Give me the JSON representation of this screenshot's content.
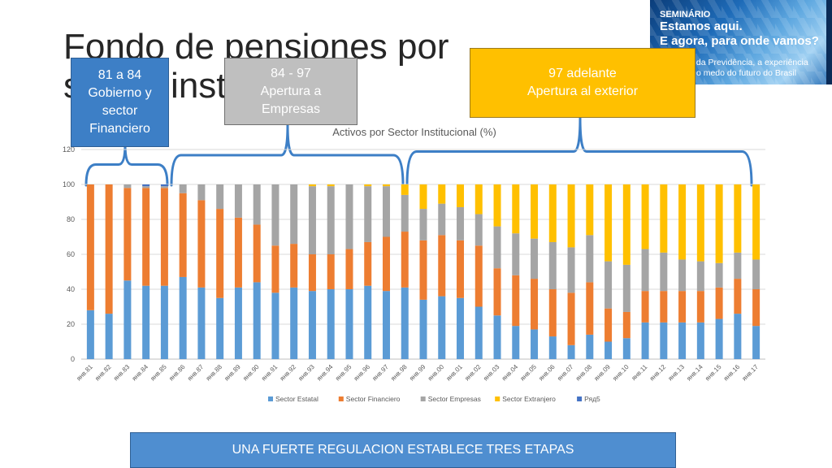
{
  "slide": {
    "title_line1": "Fondo de pensiones por",
    "title_line2": "sector institucional"
  },
  "banner": {
    "line1": "SEMINÁRIO",
    "line2": "Estamos aqui.",
    "line3": "E agora, para onde vamos?",
    "line4": "O dilema da Previdência, a experiência chilena e o medo do futuro do Brasil"
  },
  "callouts": [
    {
      "lines": [
        "81 a 84",
        "Gobierno y",
        "sector",
        "Financiero"
      ],
      "color": "#3d7fc6"
    },
    {
      "lines": [
        "84 - 97",
        "Apertura a",
        "Empresas"
      ],
      "color": "#bfbfbf"
    },
    {
      "lines": [
        "97 adelante",
        "Apertura al exterior"
      ],
      "color": "#ffc000"
    }
  ],
  "footer": {
    "text": "UNA FUERTE REGULACION ESTABLECE TRES ETAPAS"
  },
  "chart_data": {
    "type": "bar",
    "stacked": true,
    "title": "Activos por Sector Institucional (%)",
    "ylim": [
      0,
      120
    ],
    "yticks": [
      0,
      20,
      40,
      60,
      80,
      100,
      120
    ],
    "grid": true,
    "legend_position": "bottom",
    "categories": [
      "янв.81",
      "янв.82",
      "янв.83",
      "янв.84",
      "янв.85",
      "янв.86",
      "янв.87",
      "янв.88",
      "янв.89",
      "янв.90",
      "янв.91",
      "янв.92",
      "янв.93",
      "янв.94",
      "янв.95",
      "янв.96",
      "янв.97",
      "янв.98",
      "янв.99",
      "янв.00",
      "янв.01",
      "янв.02",
      "янв.03",
      "янв.04",
      "янв.05",
      "янв.06",
      "янв.07",
      "янв.08",
      "янв.09",
      "янв.10",
      "янв.11",
      "янв.12",
      "янв.13",
      "янв.14",
      "янв.15",
      "янв.16",
      "янв.17"
    ],
    "series": [
      {
        "name": "Sector Estatal",
        "color": "#5b9bd5",
        "values": [
          28,
          26,
          45,
          42,
          42,
          47,
          41,
          35,
          41,
          44,
          38,
          41,
          39,
          40,
          40,
          42,
          39,
          41,
          34,
          36,
          35,
          30,
          25,
          19,
          17,
          13,
          8,
          14,
          10,
          12,
          21,
          21,
          21,
          21,
          23,
          26,
          19
        ]
      },
      {
        "name": "Sector Financiero",
        "color": "#ed7d31",
        "values": [
          72,
          74,
          53,
          56,
          56,
          48,
          50,
          51,
          40,
          33,
          27,
          25,
          21,
          20,
          23,
          25,
          31,
          32,
          34,
          35,
          33,
          35,
          27,
          29,
          29,
          27,
          30,
          30,
          19,
          15,
          18,
          18,
          18,
          18,
          18,
          20,
          21
        ]
      },
      {
        "name": "Sector Empresas",
        "color": "#a5a5a5",
        "values": [
          0,
          0,
          2,
          1,
          1,
          5,
          9,
          14,
          19,
          23,
          35,
          34,
          39,
          39,
          37,
          32,
          29,
          21,
          18,
          18,
          19,
          18,
          24,
          24,
          23,
          27,
          26,
          27,
          27,
          27,
          24,
          22,
          18,
          17,
          14,
          15,
          17
        ]
      },
      {
        "name": "Sector Extranjero",
        "color": "#ffc000",
        "values": [
          0,
          0,
          0,
          0,
          0,
          0,
          0,
          0,
          0,
          0,
          0,
          0,
          1,
          1,
          0,
          1,
          1,
          6,
          14,
          11,
          13,
          17,
          24,
          28,
          31,
          33,
          36,
          29,
          44,
          46,
          37,
          39,
          43,
          44,
          45,
          39,
          43
        ]
      },
      {
        "name": "Ряд5",
        "color": "#4472c4",
        "values": [
          0,
          0,
          0,
          1,
          1,
          0,
          0,
          0,
          0,
          0,
          0,
          0,
          0,
          0,
          0,
          0,
          0,
          0,
          0,
          0,
          0,
          0,
          0,
          0,
          0,
          0,
          0,
          0,
          0,
          0,
          0,
          0,
          0,
          0,
          0,
          0,
          0
        ]
      }
    ]
  }
}
